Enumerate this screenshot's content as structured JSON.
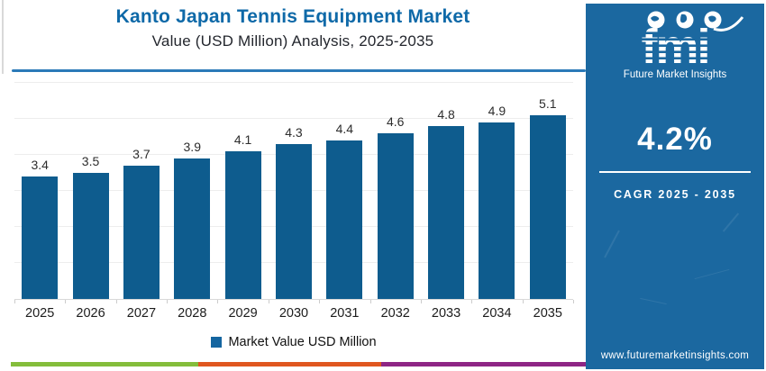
{
  "header": {
    "title_line1": "Kanto Japan Tennis Equipment Market",
    "title_line2": "Value (USD Million) Analysis, 2025-2035",
    "title_color": "#0e69a8",
    "divider_color": "#2b7ab8"
  },
  "chart_data": {
    "type": "bar",
    "categories": [
      "2025",
      "2026",
      "2027",
      "2028",
      "2029",
      "2030",
      "2031",
      "2032",
      "2033",
      "2034",
      "2035"
    ],
    "values": [
      3.4,
      3.5,
      3.7,
      3.9,
      4.1,
      4.3,
      4.4,
      4.6,
      4.8,
      4.9,
      5.1
    ],
    "series_name": "Market Value USD Million",
    "title": "Kanto Japan Tennis Equipment Market Value (USD Million) Analysis, 2025-2035",
    "xlabel": "",
    "ylabel": "",
    "ylim": [
      0,
      6
    ],
    "grid": true,
    "legend_position": "bottom",
    "bar_color": "#0e5c8e",
    "data_labels_shown": true
  },
  "legend": {
    "label": "Market Value USD Million",
    "marker_color": "#1465a0"
  },
  "sidebar": {
    "bg_color": "#1b68a0",
    "logo_text": "fmi",
    "logo_subtext": "Future Market Insights",
    "cagr_value": "4.2%",
    "cagr_label": "CAGR 2025 - 2035",
    "website": "www.futuremarketinsights.com"
  },
  "footer_stripe": {
    "colors": [
      "#84bd3b",
      "#e0561f",
      "#8e2585"
    ]
  }
}
